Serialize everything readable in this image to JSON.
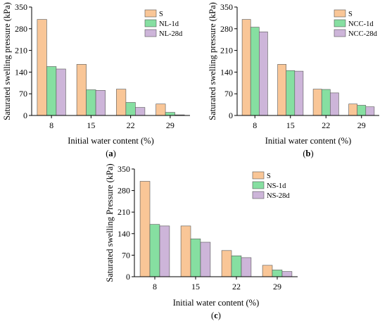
{
  "chart_data": [
    {
      "type": "bar",
      "panel_label": "(a)",
      "categories": [
        "8",
        "15",
        "22",
        "29"
      ],
      "series": [
        {
          "name": "S",
          "values": [
            310,
            165,
            85,
            37
          ]
        },
        {
          "name": "NL-1d",
          "values": [
            158,
            83,
            42,
            10
          ]
        },
        {
          "name": "NL-28d",
          "values": [
            150,
            81,
            26,
            2
          ]
        }
      ],
      "xlabel": "Initial water content (%)",
      "ylabel": "Saturated swelling pressure (kPa)",
      "ylim": [
        0,
        350
      ],
      "yticks": [
        "0",
        "70",
        "140",
        "210",
        "280",
        "350"
      ],
      "legend": "top-right",
      "grid": false
    },
    {
      "type": "bar",
      "panel_label": "(b)",
      "categories": [
        "8",
        "15",
        "22",
        "29"
      ],
      "series": [
        {
          "name": "S",
          "values": [
            310,
            165,
            85,
            37
          ]
        },
        {
          "name": "NCC-1d",
          "values": [
            285,
            145,
            84,
            33
          ]
        },
        {
          "name": "NCC-28d",
          "values": [
            270,
            143,
            73,
            28
          ]
        }
      ],
      "xlabel": "Initial water content (%)",
      "ylabel": "Saturated swelling pressure (kPa)",
      "ylim": [
        0,
        350
      ],
      "yticks": [
        "0",
        "70",
        "140",
        "210",
        "280",
        "350"
      ],
      "legend": "top-right",
      "grid": false
    },
    {
      "type": "bar",
      "panel_label": "(c)",
      "categories": [
        "8",
        "15",
        "22",
        "29"
      ],
      "series": [
        {
          "name": "S",
          "values": [
            310,
            165,
            85,
            37
          ]
        },
        {
          "name": "NS-1d",
          "values": [
            170,
            123,
            68,
            22
          ]
        },
        {
          "name": "NS-28d",
          "values": [
            165,
            112,
            62,
            17
          ]
        }
      ],
      "xlabel": "Initial water content (%)",
      "ylabel": "Saturated swelling Pressure (kPa)",
      "ylim": [
        0,
        350
      ],
      "yticks": [
        "0",
        "70",
        "140",
        "210",
        "280",
        "350"
      ],
      "legend": "top-right",
      "grid": false
    }
  ],
  "colors": {
    "series": [
      "#F9C697",
      "#86DFA1",
      "#CDB5D9"
    ],
    "axis": "#000000"
  }
}
